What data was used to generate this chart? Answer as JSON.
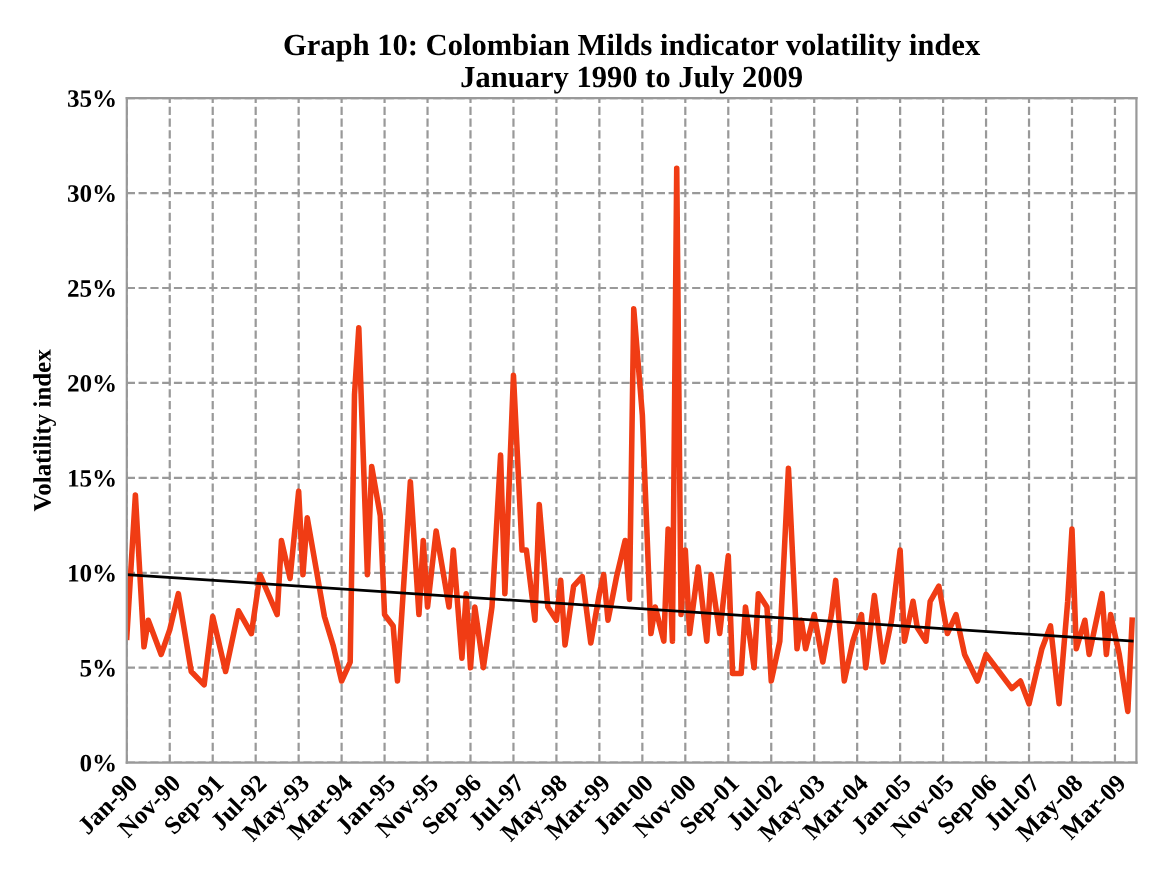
{
  "chart_data": {
    "type": "line",
    "title": "Graph 10: Colombian Milds indicator volatility index\nJanuary 1990 to July 2009",
    "ylabel": "Volatility index",
    "series": [
      {
        "color": "#f03c14",
        "x": [
          "1990-01",
          "1990-03",
          "1990-05",
          "1990-06",
          "1990-09",
          "1990-11",
          "1991-01",
          "1991-04",
          "1991-07",
          "1991-09",
          "1991-12",
          "1992-03",
          "1992-06",
          "1992-08",
          "1992-12",
          "1993-01",
          "1993-03",
          "1993-05",
          "1993-06",
          "1993-07",
          "1993-09",
          "1993-11",
          "1994-01",
          "1994-03",
          "1994-05",
          "1994-06",
          "1994-07",
          "1994-09",
          "1994-10",
          "1994-12",
          "1995-01",
          "1995-03",
          "1995-04",
          "1995-07",
          "1995-09",
          "1995-10",
          "1995-11",
          "1996-01",
          "1996-04",
          "1996-05",
          "1996-07",
          "1996-08",
          "1996-09",
          "1996-10",
          "1996-12",
          "1997-02",
          "1997-04",
          "1997-05",
          "1997-07",
          "1997-09",
          "1997-10",
          "1997-12",
          "1998-01",
          "1998-03",
          "1998-05",
          "1998-06",
          "1998-07",
          "1998-09",
          "1998-11",
          "1999-01",
          "1999-03",
          "1999-04",
          "1999-05",
          "1999-07",
          "1999-09",
          "1999-10",
          "1999-11",
          "2000-01",
          "2000-03",
          "2000-04",
          "2000-06",
          "2000-07",
          "2000-08",
          "2000-09",
          "2000-10",
          "2000-11",
          "2000-12",
          "2001-02",
          "2001-04",
          "2001-05",
          "2001-07",
          "2001-09",
          "2001-10",
          "2001-12",
          "2002-01",
          "2002-03",
          "2002-04",
          "2002-06",
          "2002-07",
          "2002-09",
          "2002-11",
          "2003-01",
          "2003-02",
          "2003-03",
          "2003-05",
          "2003-07",
          "2003-09",
          "2003-10",
          "2003-12",
          "2004-02",
          "2004-04",
          "2004-05",
          "2004-07",
          "2004-09",
          "2004-11",
          "2005-01",
          "2005-02",
          "2005-04",
          "2005-05",
          "2005-07",
          "2005-08",
          "2005-10",
          "2005-12",
          "2006-02",
          "2006-04",
          "2006-07",
          "2006-09",
          "2006-12",
          "2007-03",
          "2007-05",
          "2007-07",
          "2007-10",
          "2007-12",
          "2008-02",
          "2008-04",
          "2008-05",
          "2008-06",
          "2008-08",
          "2008-09",
          "2008-12",
          "2009-01",
          "2009-02",
          "2009-04",
          "2009-06",
          "2009-07"
        ],
        "values": [
          6.6,
          14.1,
          6.1,
          7.5,
          5.7,
          7.0,
          8.9,
          4.8,
          4.1,
          7.7,
          4.8,
          8.0,
          6.8,
          9.9,
          7.8,
          11.7,
          9.7,
          14.3,
          9.9,
          12.9,
          10.3,
          7.7,
          6.2,
          4.3,
          5.3,
          19.4,
          22.9,
          9.9,
          15.6,
          13.0,
          7.8,
          7.2,
          4.3,
          14.8,
          7.8,
          11.7,
          8.2,
          12.2,
          8.2,
          11.2,
          5.5,
          8.9,
          5.0,
          8.2,
          5.0,
          8.2,
          16.2,
          8.9,
          20.4,
          11.2,
          11.2,
          7.5,
          13.6,
          8.2,
          7.5,
          9.6,
          6.2,
          9.3,
          9.8,
          6.3,
          8.9,
          9.9,
          7.5,
          9.8,
          11.7,
          8.6,
          23.9,
          18.3,
          6.8,
          8.2,
          6.4,
          12.3,
          6.4,
          31.3,
          7.8,
          11.2,
          6.8,
          10.3,
          6.4,
          9.9,
          6.8,
          10.9,
          4.7,
          4.7,
          8.2,
          5.0,
          8.9,
          8.2,
          4.3,
          6.4,
          15.5,
          6.0,
          7.5,
          6.0,
          7.8,
          5.3,
          7.8,
          9.6,
          4.3,
          6.4,
          7.8,
          5.0,
          8.8,
          5.3,
          7.5,
          11.2,
          6.4,
          8.5,
          7.1,
          6.4,
          8.5,
          9.3,
          6.8,
          7.8,
          5.7,
          4.3,
          5.7,
          4.8,
          3.9,
          4.3,
          3.1,
          6.0,
          7.2,
          3.1,
          8.5,
          12.3,
          6.0,
          7.5,
          5.7,
          8.9,
          5.7,
          7.8,
          5.7,
          2.7,
          7.5
        ]
      },
      {
        "type": "line",
        "color": "#000000",
        "x": [
          "1990-01",
          "2009-07"
        ],
        "values": [
          9.9,
          6.4
        ]
      }
    ],
    "xlim": [
      "1990-01",
      "2009-08"
    ],
    "xticks": [
      {
        "value": "1990-01",
        "label": "Jan-90"
      },
      {
        "value": "1990-11",
        "label": "Nov-90"
      },
      {
        "value": "1991-09",
        "label": "Sep-91"
      },
      {
        "value": "1992-07",
        "label": "Jul-92"
      },
      {
        "value": "1993-05",
        "label": "May-93"
      },
      {
        "value": "1994-03",
        "label": "Mar-94"
      },
      {
        "value": "1995-01",
        "label": "Jan-95"
      },
      {
        "value": "1995-11",
        "label": "Nov-95"
      },
      {
        "value": "1996-09",
        "label": "Sep-96"
      },
      {
        "value": "1997-07",
        "label": "Jul-97"
      },
      {
        "value": "1998-05",
        "label": "May-98"
      },
      {
        "value": "1999-03",
        "label": "Mar-99"
      },
      {
        "value": "2000-01",
        "label": "Jan-00"
      },
      {
        "value": "2000-11",
        "label": "Nov-00"
      },
      {
        "value": "2001-09",
        "label": "Sep-01"
      },
      {
        "value": "2002-07",
        "label": "Jul-02"
      },
      {
        "value": "2003-05",
        "label": "May-03"
      },
      {
        "value": "2004-03",
        "label": "Mar-04"
      },
      {
        "value": "2005-01",
        "label": "Jan-05"
      },
      {
        "value": "2005-11",
        "label": "Nov-05"
      },
      {
        "value": "2006-09",
        "label": "Sep-06"
      },
      {
        "value": "2007-07",
        "label": "Jul-07"
      },
      {
        "value": "2008-05",
        "label": "May-08"
      },
      {
        "value": "2009-03",
        "label": "Mar-09"
      }
    ],
    "ylim": [
      0,
      35
    ],
    "yticks": [
      {
        "value": 0,
        "label": "0%"
      },
      {
        "value": 5,
        "label": "5%"
      },
      {
        "value": 10,
        "label": "10%"
      },
      {
        "value": 15,
        "label": "15%"
      },
      {
        "value": 20,
        "label": "20%"
      },
      {
        "value": 25,
        "label": "25%"
      },
      {
        "value": 30,
        "label": "30%"
      },
      {
        "value": 35,
        "label": "35%"
      }
    ],
    "grid": true
  }
}
